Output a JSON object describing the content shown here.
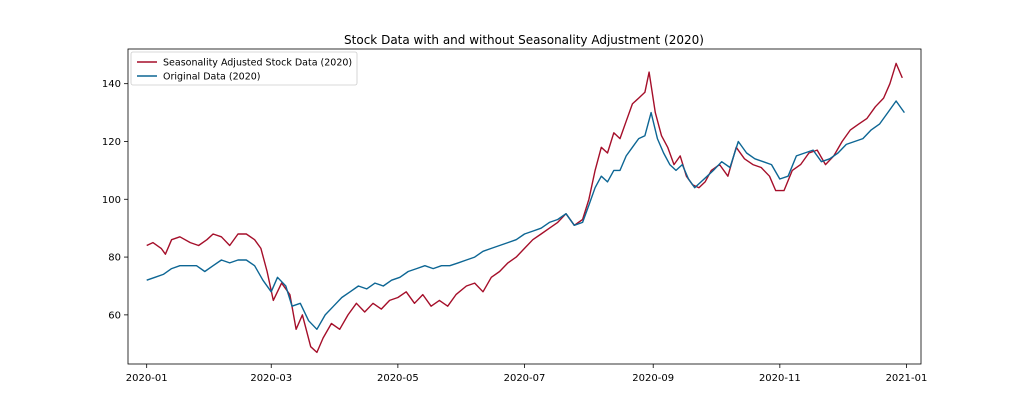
{
  "chart_data": {
    "type": "line",
    "title": "Stock Data with and without Seasonality Adjustment (2020)",
    "xlabel": "",
    "ylabel": "",
    "x_axis_type": "date",
    "xlim": [
      "2019-12-23",
      "2021-01-08"
    ],
    "ylim": [
      43,
      152
    ],
    "x_ticks": [
      "2020-01-01",
      "2020-03-01",
      "2020-05-01",
      "2020-07-01",
      "2020-09-01",
      "2020-11-01",
      "2021-01-01"
    ],
    "x_tick_labels": [
      "2020-01",
      "2020-03",
      "2020-05",
      "2020-07",
      "2020-09",
      "2020-11",
      "2021-01"
    ],
    "y_ticks": [
      60,
      80,
      100,
      120,
      140
    ],
    "y_tick_labels": [
      "60",
      "80",
      "100",
      "120",
      "140"
    ],
    "grid": false,
    "legend_position": "upper-left",
    "colors": {
      "adjusted": "#a50f2a",
      "original": "#0d6694"
    },
    "series": [
      {
        "name": "Seasonality Adjusted Stock Data (2020)",
        "color": "#a50f2a",
        "points": [
          [
            "2020-01-01",
            84
          ],
          [
            "2020-01-04",
            85
          ],
          [
            "2020-01-08",
            83
          ],
          [
            "2020-01-10",
            81
          ],
          [
            "2020-01-13",
            86
          ],
          [
            "2020-01-17",
            87
          ],
          [
            "2020-01-22",
            85
          ],
          [
            "2020-01-26",
            84
          ],
          [
            "2020-01-30",
            86
          ],
          [
            "2020-02-02",
            88
          ],
          [
            "2020-02-06",
            87
          ],
          [
            "2020-02-10",
            84
          ],
          [
            "2020-02-14",
            88
          ],
          [
            "2020-02-18",
            88
          ],
          [
            "2020-02-22",
            86
          ],
          [
            "2020-02-25",
            83
          ],
          [
            "2020-02-28",
            75
          ],
          [
            "2020-03-02",
            65
          ],
          [
            "2020-03-06",
            71
          ],
          [
            "2020-03-10",
            67
          ],
          [
            "2020-03-13",
            55
          ],
          [
            "2020-03-16",
            60
          ],
          [
            "2020-03-20",
            49
          ],
          [
            "2020-03-23",
            47
          ],
          [
            "2020-03-26",
            52
          ],
          [
            "2020-03-30",
            57
          ],
          [
            "2020-04-03",
            55
          ],
          [
            "2020-04-07",
            60
          ],
          [
            "2020-04-11",
            64
          ],
          [
            "2020-04-15",
            61
          ],
          [
            "2020-04-19",
            64
          ],
          [
            "2020-04-23",
            62
          ],
          [
            "2020-04-27",
            65
          ],
          [
            "2020-05-01",
            66
          ],
          [
            "2020-05-05",
            68
          ],
          [
            "2020-05-09",
            64
          ],
          [
            "2020-05-13",
            67
          ],
          [
            "2020-05-17",
            63
          ],
          [
            "2020-05-21",
            65
          ],
          [
            "2020-05-25",
            63
          ],
          [
            "2020-05-29",
            67
          ],
          [
            "2020-06-03",
            70
          ],
          [
            "2020-06-07",
            71
          ],
          [
            "2020-06-11",
            68
          ],
          [
            "2020-06-15",
            73
          ],
          [
            "2020-06-19",
            75
          ],
          [
            "2020-06-23",
            78
          ],
          [
            "2020-06-27",
            80
          ],
          [
            "2020-07-01",
            83
          ],
          [
            "2020-07-05",
            86
          ],
          [
            "2020-07-09",
            88
          ],
          [
            "2020-07-13",
            90
          ],
          [
            "2020-07-17",
            92
          ],
          [
            "2020-07-21",
            95
          ],
          [
            "2020-07-25",
            91
          ],
          [
            "2020-07-29",
            93
          ],
          [
            "2020-08-01",
            100
          ],
          [
            "2020-08-04",
            110
          ],
          [
            "2020-08-07",
            118
          ],
          [
            "2020-08-10",
            116
          ],
          [
            "2020-08-13",
            123
          ],
          [
            "2020-08-16",
            121
          ],
          [
            "2020-08-19",
            127
          ],
          [
            "2020-08-22",
            133
          ],
          [
            "2020-08-25",
            135
          ],
          [
            "2020-08-28",
            137
          ],
          [
            "2020-08-30",
            144
          ],
          [
            "2020-09-02",
            130
          ],
          [
            "2020-09-05",
            122
          ],
          [
            "2020-09-08",
            118
          ],
          [
            "2020-09-11",
            112
          ],
          [
            "2020-09-14",
            115
          ],
          [
            "2020-09-17",
            108
          ],
          [
            "2020-09-20",
            105
          ],
          [
            "2020-09-23",
            104
          ],
          [
            "2020-09-26",
            106
          ],
          [
            "2020-09-29",
            110
          ],
          [
            "2020-10-03",
            112
          ],
          [
            "2020-10-07",
            108
          ],
          [
            "2020-10-11",
            118
          ],
          [
            "2020-10-15",
            114
          ],
          [
            "2020-10-19",
            112
          ],
          [
            "2020-10-23",
            111
          ],
          [
            "2020-10-27",
            108
          ],
          [
            "2020-10-30",
            103
          ],
          [
            "2020-11-03",
            103
          ],
          [
            "2020-11-07",
            110
          ],
          [
            "2020-11-11",
            112
          ],
          [
            "2020-11-15",
            116
          ],
          [
            "2020-11-19",
            117
          ],
          [
            "2020-11-23",
            112
          ],
          [
            "2020-11-27",
            115
          ],
          [
            "2020-12-01",
            120
          ],
          [
            "2020-12-05",
            124
          ],
          [
            "2020-12-09",
            126
          ],
          [
            "2020-12-13",
            128
          ],
          [
            "2020-12-17",
            132
          ],
          [
            "2020-12-21",
            135
          ],
          [
            "2020-12-24",
            140
          ],
          [
            "2020-12-27",
            147
          ],
          [
            "2020-12-30",
            142
          ]
        ]
      },
      {
        "name": "Original Data (2020)",
        "color": "#0d6694",
        "points": [
          [
            "2020-01-01",
            72
          ],
          [
            "2020-01-05",
            73
          ],
          [
            "2020-01-09",
            74
          ],
          [
            "2020-01-13",
            76
          ],
          [
            "2020-01-17",
            77
          ],
          [
            "2020-01-21",
            77
          ],
          [
            "2020-01-25",
            77
          ],
          [
            "2020-01-29",
            75
          ],
          [
            "2020-02-02",
            77
          ],
          [
            "2020-02-06",
            79
          ],
          [
            "2020-02-10",
            78
          ],
          [
            "2020-02-14",
            79
          ],
          [
            "2020-02-18",
            79
          ],
          [
            "2020-02-22",
            77
          ],
          [
            "2020-02-26",
            72
          ],
          [
            "2020-03-01",
            68
          ],
          [
            "2020-03-04",
            73
          ],
          [
            "2020-03-08",
            70
          ],
          [
            "2020-03-11",
            63
          ],
          [
            "2020-03-15",
            64
          ],
          [
            "2020-03-19",
            58
          ],
          [
            "2020-03-23",
            55
          ],
          [
            "2020-03-27",
            60
          ],
          [
            "2020-03-31",
            63
          ],
          [
            "2020-04-04",
            66
          ],
          [
            "2020-04-08",
            68
          ],
          [
            "2020-04-12",
            70
          ],
          [
            "2020-04-16",
            69
          ],
          [
            "2020-04-20",
            71
          ],
          [
            "2020-04-24",
            70
          ],
          [
            "2020-04-28",
            72
          ],
          [
            "2020-05-02",
            73
          ],
          [
            "2020-05-06",
            75
          ],
          [
            "2020-05-10",
            76
          ],
          [
            "2020-05-14",
            77
          ],
          [
            "2020-05-18",
            76
          ],
          [
            "2020-05-22",
            77
          ],
          [
            "2020-05-26",
            77
          ],
          [
            "2020-05-30",
            78
          ],
          [
            "2020-06-03",
            79
          ],
          [
            "2020-06-07",
            80
          ],
          [
            "2020-06-11",
            82
          ],
          [
            "2020-06-15",
            83
          ],
          [
            "2020-06-19",
            84
          ],
          [
            "2020-06-23",
            85
          ],
          [
            "2020-06-27",
            86
          ],
          [
            "2020-07-01",
            88
          ],
          [
            "2020-07-05",
            89
          ],
          [
            "2020-07-09",
            90
          ],
          [
            "2020-07-13",
            92
          ],
          [
            "2020-07-17",
            93
          ],
          [
            "2020-07-21",
            95
          ],
          [
            "2020-07-25",
            91
          ],
          [
            "2020-07-29",
            92
          ],
          [
            "2020-08-01",
            98
          ],
          [
            "2020-08-04",
            104
          ],
          [
            "2020-08-07",
            108
          ],
          [
            "2020-08-10",
            106
          ],
          [
            "2020-08-13",
            110
          ],
          [
            "2020-08-16",
            110
          ],
          [
            "2020-08-19",
            115
          ],
          [
            "2020-08-22",
            118
          ],
          [
            "2020-08-25",
            121
          ],
          [
            "2020-08-28",
            122
          ],
          [
            "2020-08-31",
            130
          ],
          [
            "2020-09-03",
            121
          ],
          [
            "2020-09-06",
            116
          ],
          [
            "2020-09-09",
            112
          ],
          [
            "2020-09-12",
            110
          ],
          [
            "2020-09-15",
            112
          ],
          [
            "2020-09-18",
            107
          ],
          [
            "2020-09-21",
            104
          ],
          [
            "2020-09-24",
            106
          ],
          [
            "2020-09-27",
            108
          ],
          [
            "2020-09-30",
            110
          ],
          [
            "2020-10-04",
            113
          ],
          [
            "2020-10-08",
            111
          ],
          [
            "2020-10-12",
            120
          ],
          [
            "2020-10-16",
            116
          ],
          [
            "2020-10-20",
            114
          ],
          [
            "2020-10-24",
            113
          ],
          [
            "2020-10-28",
            112
          ],
          [
            "2020-11-01",
            107
          ],
          [
            "2020-11-05",
            108
          ],
          [
            "2020-11-09",
            115
          ],
          [
            "2020-11-13",
            116
          ],
          [
            "2020-11-17",
            117
          ],
          [
            "2020-11-21",
            113
          ],
          [
            "2020-11-25",
            114
          ],
          [
            "2020-11-29",
            116
          ],
          [
            "2020-12-03",
            119
          ],
          [
            "2020-12-07",
            120
          ],
          [
            "2020-12-11",
            121
          ],
          [
            "2020-12-15",
            124
          ],
          [
            "2020-12-19",
            126
          ],
          [
            "2020-12-23",
            130
          ],
          [
            "2020-12-27",
            134
          ],
          [
            "2020-12-31",
            130
          ]
        ]
      }
    ]
  }
}
